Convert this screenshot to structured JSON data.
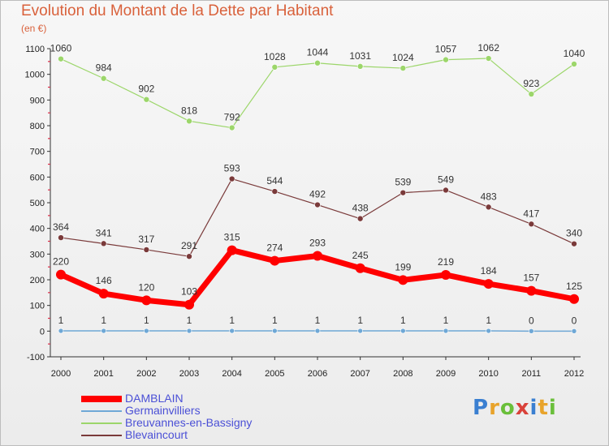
{
  "title": "Evolution du Montant de la Dette par Habitant",
  "subtitle": "(en €)",
  "logo": {
    "text": "Proxiti",
    "letters": [
      {
        "ch": "P",
        "color": "#3a7fd1"
      },
      {
        "ch": "r",
        "color": "#e8a32b"
      },
      {
        "ch": "o",
        "color": "#6abf3a"
      },
      {
        "ch": "x",
        "color": "#d9423a"
      },
      {
        "ch": "i",
        "color": "#3a7fd1"
      },
      {
        "ch": "t",
        "color": "#e8a32b"
      },
      {
        "ch": "i",
        "color": "#6abf3a"
      }
    ]
  },
  "chart_data": {
    "type": "line",
    "x": [
      "2000",
      "2001",
      "2002",
      "2003",
      "2004",
      "2005",
      "2006",
      "2007",
      "2008",
      "2009",
      "2010",
      "2011",
      "2012"
    ],
    "ylim": [
      -100,
      1100
    ],
    "yticks": [
      -100,
      0,
      100,
      200,
      300,
      400,
      500,
      600,
      700,
      800,
      900,
      1000,
      1100
    ],
    "grid": false,
    "legend_position": "bottom-left",
    "series": [
      {
        "name": "DAMBLAIN",
        "color": "#ff0000",
        "width": 7,
        "marker": 6,
        "values": [
          220,
          146,
          120,
          103,
          315,
          274,
          293,
          245,
          199,
          219,
          184,
          157,
          125
        ]
      },
      {
        "name": "Germainvilliers",
        "color": "#6fa8d6",
        "width": 1.5,
        "marker": 3,
        "values": [
          1,
          1,
          1,
          1,
          1,
          1,
          1,
          1,
          1,
          1,
          1,
          0,
          0
        ]
      },
      {
        "name": "Breuvannes-en-Bassigny",
        "color": "#9cd66a",
        "width": 1.2,
        "marker": 3.5,
        "values": [
          1060,
          984,
          902,
          818,
          792,
          1028,
          1044,
          1031,
          1024,
          1057,
          1062,
          923,
          1040
        ]
      },
      {
        "name": "Blevaincourt",
        "color": "#7a3a3a",
        "width": 1.2,
        "marker": 3.5,
        "values": [
          364,
          341,
          317,
          291,
          593,
          544,
          492,
          438,
          539,
          549,
          483,
          417,
          340
        ]
      }
    ]
  }
}
